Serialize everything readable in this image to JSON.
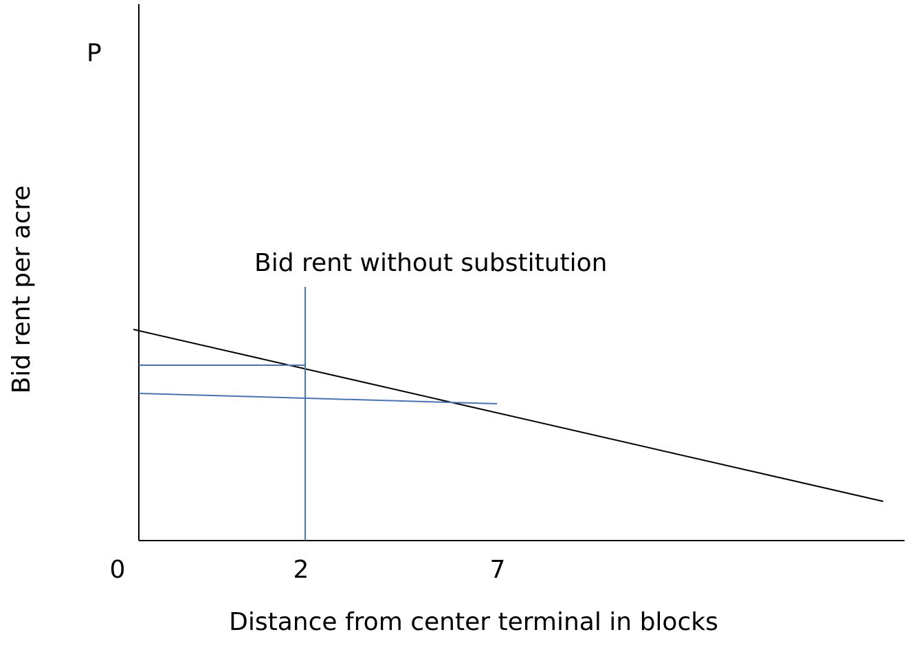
{
  "y_axis_symbol": "P",
  "y_axis_label": "Bid rent per acre",
  "x_axis_label": "Distance from center terminal in blocks",
  "curve_label": "Bid rent without substitution",
  "x_tick_labels": [
    "0",
    "2",
    "7"
  ],
  "colors": {
    "axes": "#000000",
    "bid_rent_line": "#000000",
    "guide_lines": "#4a72b0"
  }
}
